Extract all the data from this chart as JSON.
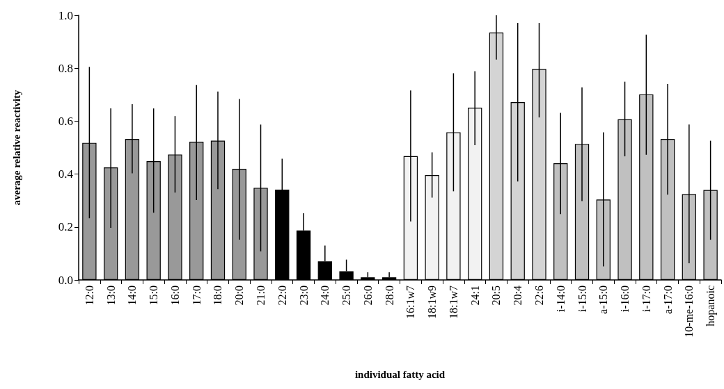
{
  "chart_data": {
    "type": "bar",
    "xlabel": "individual fatty acid",
    "ylabel": "average relative reactivity",
    "categories": [
      "12:0",
      "13:0",
      "14:0",
      "15:0",
      "16:0",
      "17:0",
      "18:0",
      "20:0",
      "21:0",
      "22:0",
      "23:0",
      "24:0",
      "25:0",
      "26:0",
      "28:0",
      "16:1w7",
      "18:1w9",
      "18:1w7",
      "24:1",
      "20:5",
      "20:4",
      "22:6",
      "i-14:0",
      "i-15:0",
      "a-15:0",
      "i-16:0",
      "i-17:0",
      "a-17:0",
      "10-me-16:0",
      "hopanoic"
    ],
    "values": [
      0.518,
      0.425,
      0.533,
      0.449,
      0.474,
      0.522,
      0.526,
      0.42,
      0.348,
      0.341,
      0.187,
      0.07,
      0.033,
      0.01,
      0.01,
      0.468,
      0.396,
      0.558,
      0.651,
      0.935,
      0.672,
      0.797,
      0.441,
      0.514,
      0.304,
      0.607,
      0.701,
      0.533,
      0.324,
      0.34
    ],
    "colors": [
      "#999999",
      "#999999",
      "#999999",
      "#999999",
      "#999999",
      "#999999",
      "#999999",
      "#999999",
      "#999999",
      "#000000",
      "#000000",
      "#000000",
      "#000000",
      "#000000",
      "#000000",
      "#f2f2f2",
      "#f2f2f2",
      "#f2f2f2",
      "#f2f2f2",
      "#d4d4d4",
      "#d4d4d4",
      "#d4d4d4",
      "#c0c0c0",
      "#c0c0c0",
      "#c0c0c0",
      "#c0c0c0",
      "#c0c0c0",
      "#c0c0c0",
      "#c0c0c0",
      "#c0c0c0"
    ],
    "errors": [
      [
        0.233,
        0.805
      ],
      [
        0.197,
        0.648
      ],
      [
        0.403,
        0.664
      ],
      [
        0.254,
        0.648
      ],
      [
        0.33,
        0.619
      ],
      [
        0.302,
        0.737
      ],
      [
        0.343,
        0.712
      ],
      [
        0.152,
        0.684
      ],
      [
        0.108,
        0.587
      ],
      [
        0.341,
        0.458
      ],
      [
        0.187,
        0.252
      ],
      [
        0.07,
        0.13
      ],
      [
        0.033,
        0.077
      ],
      [
        0.01,
        0.029
      ],
      [
        0.01,
        0.029
      ],
      [
        0.221,
        0.716
      ],
      [
        0.311,
        0.482
      ],
      [
        0.335,
        0.781
      ],
      [
        0.509,
        0.789
      ],
      [
        0.833,
        1.0
      ],
      [
        0.372,
        0.971
      ],
      [
        0.614,
        0.971
      ],
      [
        0.249,
        0.631
      ],
      [
        0.298,
        0.728
      ],
      [
        0.051,
        0.558
      ],
      [
        0.467,
        0.749
      ],
      [
        0.473,
        0.927
      ],
      [
        0.322,
        0.74
      ],
      [
        0.063,
        0.587
      ],
      [
        0.152,
        0.526
      ]
    ],
    "ylim": [
      0,
      1
    ],
    "yticks": [
      {
        "value": 0,
        "label": "0.0"
      },
      0.2,
      0.4,
      0.6,
      0.8,
      {
        "value": 1,
        "label": "1.0"
      }
    ],
    "grid": false
  }
}
